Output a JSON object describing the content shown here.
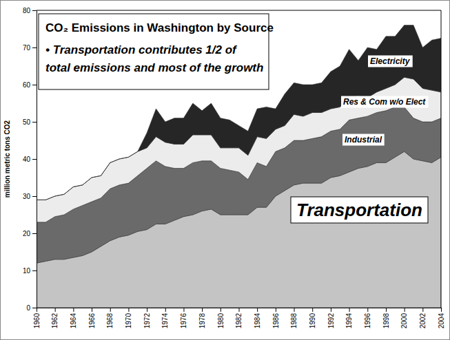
{
  "chart_data": {
    "type": "area",
    "stacked": true,
    "grid": false,
    "title": "CO₂ Emissions in Washington by Source",
    "annotations": [
      "• Transportation contributes 1/2 of",
      "total emissions and most of the growth"
    ],
    "y_label": "million metric tons CO2",
    "x": [
      1960,
      1961,
      1962,
      1963,
      1964,
      1965,
      1966,
      1967,
      1968,
      1969,
      1970,
      1971,
      1972,
      1973,
      1974,
      1975,
      1976,
      1977,
      1978,
      1979,
      1980,
      1981,
      1982,
      1983,
      1984,
      1985,
      1986,
      1987,
      1988,
      1989,
      1990,
      1991,
      1992,
      1993,
      1994,
      1995,
      1996,
      1997,
      1998,
      1999,
      2000,
      2001,
      2002,
      2003,
      2004
    ],
    "xlim": [
      1960,
      2004
    ],
    "xticks": [
      1960,
      1962,
      1964,
      1966,
      1968,
      1970,
      1972,
      1974,
      1976,
      1978,
      1980,
      1982,
      1984,
      1986,
      1988,
      1990,
      1992,
      1994,
      1996,
      1998,
      2000,
      2002,
      2004
    ],
    "ylim": [
      0,
      80
    ],
    "yticks": [
      0,
      10,
      20,
      30,
      40,
      50,
      60,
      70,
      80
    ],
    "series": [
      {
        "name": "Transportation",
        "color": "#c4c4c4",
        "values": [
          12,
          12.5,
          13,
          13,
          13.5,
          14,
          15,
          16.5,
          18,
          19,
          19.5,
          20.5,
          21,
          22.5,
          22.5,
          23.5,
          24.5,
          25,
          26,
          26.5,
          25,
          25,
          25,
          25,
          27,
          27,
          30,
          31.5,
          33,
          33.5,
          33.5,
          33.5,
          35,
          35.5,
          36.5,
          37.5,
          38,
          39,
          39,
          40.5,
          42,
          40,
          39.5,
          39,
          40.5
        ]
      },
      {
        "name": "Industrial",
        "color": "#6a6a6a",
        "values": [
          11,
          10.5,
          11.5,
          12,
          13,
          13.5,
          13.5,
          13,
          14,
          14,
          14,
          15,
          16.5,
          17,
          15.5,
          14,
          13,
          14,
          13.5,
          13,
          12.5,
          12,
          11.5,
          9.5,
          12,
          11,
          12,
          11.5,
          12,
          11.5,
          12,
          12.5,
          12.5,
          12.5,
          14,
          13.5,
          13.5,
          13.5,
          14,
          13.5,
          12,
          11,
          10.5,
          11,
          10.5
        ]
      },
      {
        "name": "Res & Com w/o Elect",
        "color": "#ececec",
        "values": [
          6,
          6,
          5.5,
          5.5,
          6,
          5.5,
          6.5,
          6,
          7,
          7,
          7,
          6.5,
          5.5,
          6.5,
          6.5,
          6.5,
          6.5,
          7.5,
          7,
          7,
          5.5,
          6,
          6.5,
          6.5,
          7,
          7.5,
          6,
          6,
          7,
          6.5,
          7,
          6.5,
          6,
          6,
          6,
          6,
          5,
          5.5,
          6,
          6,
          8,
          10.5,
          9,
          8.5,
          7
        ]
      },
      {
        "name": "Electricity",
        "color": "#262626",
        "values": [
          0,
          0,
          0,
          0,
          0,
          0,
          0,
          0,
          0,
          0,
          0,
          0,
          4,
          7.5,
          5.5,
          7,
          7,
          8.5,
          6.5,
          8.5,
          8,
          7.5,
          6,
          6.5,
          7.5,
          8.5,
          5.5,
          8.5,
          8.5,
          8.5,
          7.5,
          8,
          10,
          11,
          13,
          9.5,
          13.5,
          11.5,
          14,
          13,
          14,
          14.5,
          11,
          13.5,
          14.5
        ]
      }
    ]
  }
}
